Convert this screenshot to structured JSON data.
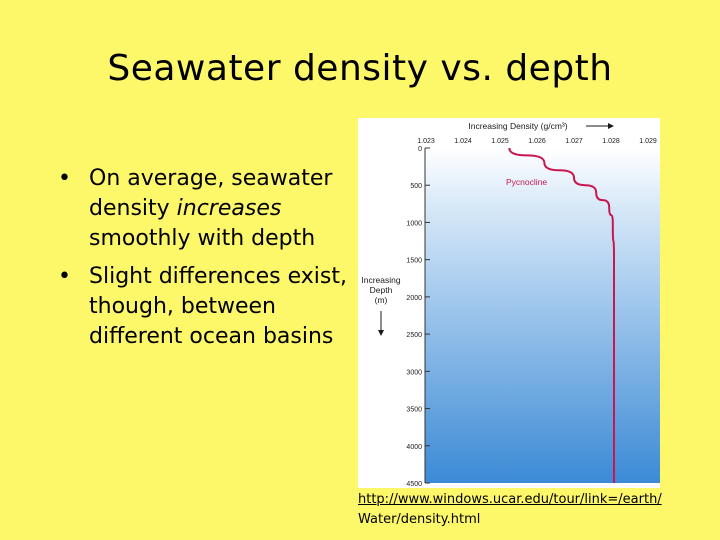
{
  "slide": {
    "title": "Seawater density vs. depth",
    "bullets": [
      {
        "before": "On average, seawater density ",
        "emphasis": "increases",
        "after": " smoothly with depth"
      },
      {
        "before": "Slight differences exist, though, between different ocean basins",
        "emphasis": "",
        "after": ""
      }
    ],
    "bullet_glyph": "•",
    "source": {
      "line1": "http://www.windows.ucar.edu/tour/link=/earth/",
      "line2": "Water/density.html"
    }
  },
  "chart_data": {
    "type": "line",
    "title": "Increasing Density (g/cm³)",
    "xlabel": "Increasing Density (g/cm³)",
    "ylabel": "Increasing Depth (m)",
    "x_ticks": [
      "1.023",
      "1.024",
      "1.025",
      "1.026",
      "1.027",
      "1.028",
      "1.029"
    ],
    "y_ticks": [
      "0",
      "500",
      "1000",
      "1500",
      "2000",
      "2500",
      "3000",
      "3500",
      "4000",
      "4500"
    ],
    "xlim": [
      1.023,
      1.029
    ],
    "ylim": [
      0,
      4500
    ],
    "y_inverted": true,
    "grid": false,
    "annotation": "Pycnocline",
    "series": [
      {
        "x": [
          1.02525,
          1.0262,
          1.027,
          1.0276,
          1.02795,
          1.02805,
          1.02808,
          1.02808
        ],
        "y": [
          0,
          200,
          400,
          600,
          800,
          1000,
          1500,
          4500
        ]
      }
    ],
    "colors": {
      "line": "#c8164e",
      "text": "#1a1a1a",
      "annotation": "#c8164e"
    }
  }
}
